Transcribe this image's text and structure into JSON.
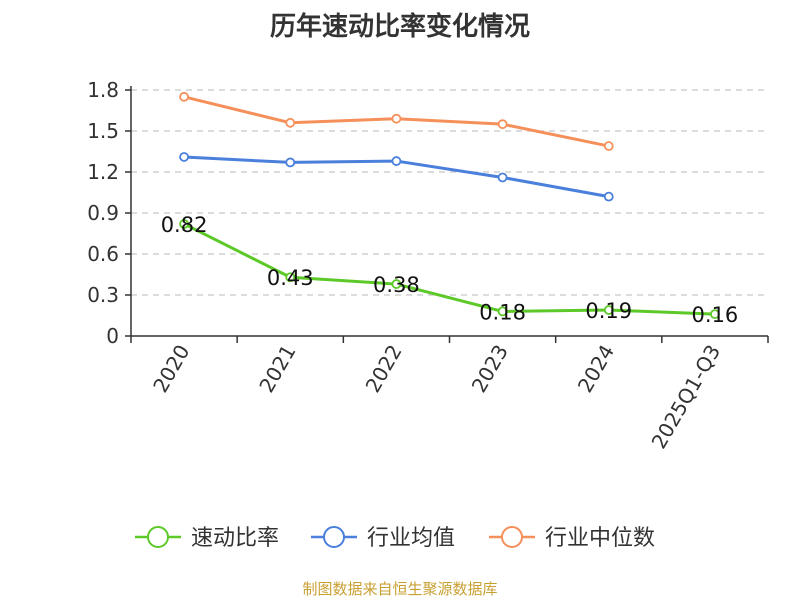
{
  "title": "历年速动比率变化情况",
  "source": "制图数据来自恒生聚源数据库",
  "colors": {
    "source_text": "#c8a032",
    "grid": "#c8c8c8",
    "axis": "#333333"
  },
  "chart_data": {
    "type": "line",
    "categories": [
      "2020",
      "2021",
      "2022",
      "2023",
      "2024",
      "2025Q1-Q3"
    ],
    "ylim": [
      0,
      1.8
    ],
    "yticks": [
      "0",
      "0.3",
      "0.6",
      "0.9",
      "1.2",
      "1.5",
      "1.8"
    ],
    "grid": "horizontal-dashed",
    "legend_position": "bottom",
    "series": [
      {
        "name": "速动比率",
        "color": "#5cc928",
        "values": [
          0.82,
          0.43,
          0.38,
          0.18,
          0.19,
          0.16
        ],
        "data_labels": [
          "0.82",
          "0.43",
          "0.38",
          "0.18",
          "0.19",
          "0.16"
        ]
      },
      {
        "name": "行业均值",
        "color": "#4a7fdc",
        "values": [
          1.31,
          1.27,
          1.28,
          1.16,
          1.02,
          null
        ]
      },
      {
        "name": "行业中位数",
        "color": "#f5905a",
        "values": [
          1.75,
          1.56,
          1.59,
          1.55,
          1.39,
          null
        ]
      }
    ]
  }
}
